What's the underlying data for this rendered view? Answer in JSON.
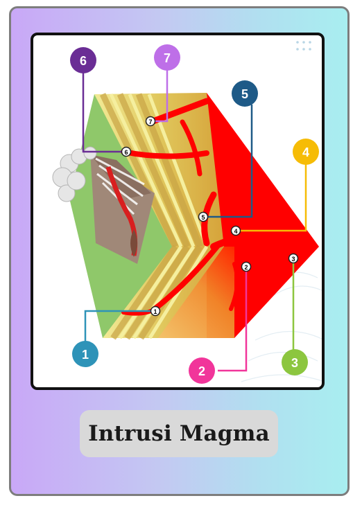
{
  "card": {
    "title": "Intrusi Magma"
  },
  "diagram": {
    "callouts": [
      {
        "number": "1",
        "color": "#2e93b8"
      },
      {
        "number": "2",
        "color": "#f1359a"
      },
      {
        "number": "3",
        "color": "#8cc63f"
      },
      {
        "number": "4",
        "color": "#f6bc06"
      },
      {
        "number": "5",
        "color": "#1e5a87"
      },
      {
        "number": "6",
        "color": "#6a2d95"
      },
      {
        "number": "7",
        "color": "#be6fe8"
      }
    ],
    "colors": {
      "magma": "#ff0000",
      "lava": "#d81f1f",
      "grass": "#8fc86a"
    }
  }
}
